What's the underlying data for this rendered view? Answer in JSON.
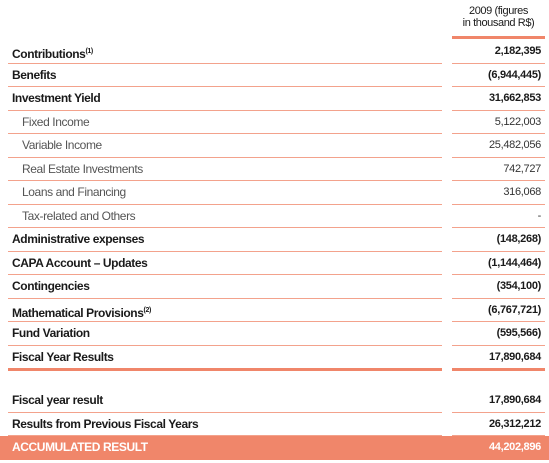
{
  "header": {
    "column": [
      "2009 (figures",
      "in thousand R$)"
    ]
  },
  "table": {
    "rows": [
      {
        "label": "Contributions",
        "note": "(1)",
        "value": "2,182,395"
      },
      {
        "label": "Benefits",
        "value": "(6,944,445)"
      },
      {
        "label": "Investment Yield",
        "value": "31,662,853"
      },
      {
        "label": "Fixed Income",
        "value": "5,122,003",
        "indent": true
      },
      {
        "label": "Variable Income",
        "value": "25,482,056",
        "indent": true
      },
      {
        "label": "Real Estate Investments",
        "value": "742,727",
        "indent": true
      },
      {
        "label": "Loans and Financing",
        "value": "316,068",
        "indent": true
      },
      {
        "label": "Tax-related and Others",
        "value": "-",
        "indent": true
      },
      {
        "label": "Administrative expenses",
        "value": "(148,268)"
      },
      {
        "label": "CAPA Account – Updates",
        "value": "(1,144,464)"
      },
      {
        "label": "Contingencies",
        "value": "(354,100)"
      },
      {
        "label": "Mathematical Provisions",
        "note": "(2)",
        "value": "(6,767,721)"
      },
      {
        "label": "Fund Variation",
        "value": "(595,566)"
      },
      {
        "label": "Fiscal Year Results",
        "value": "17,890,684",
        "emphasis": "rule"
      }
    ]
  },
  "summary": {
    "rows": [
      {
        "label": "Fiscal year result",
        "value": "17,890,684"
      },
      {
        "label": "Results from Previous Fiscal Years",
        "value": "26,312,212"
      },
      {
        "label": "ACCUMULATED RESULT",
        "value": "44,202,896",
        "emphasis": "highlight"
      }
    ]
  }
}
